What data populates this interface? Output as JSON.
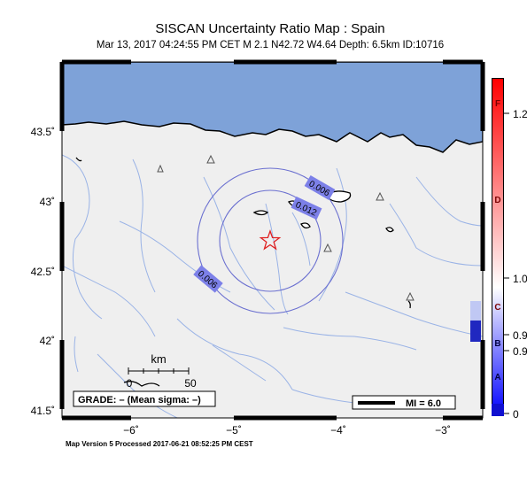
{
  "title": "SISCAN Uncertainty Ratio Map : Spain",
  "subtitle": "Mar 13, 2017 04:24:55 PM CET   M 2.1   N42.72 W4.64   Depth: 6.5km   ID:10716",
  "footer": "Map Version 5 Processed 2017-06-21 08:52:25 PM CEST",
  "map": {
    "lat_labels": [
      "43.5˚",
      "43˚",
      "42.5˚",
      "42˚",
      "41.5˚"
    ],
    "lon_labels": [
      "−6˚",
      "−5˚",
      "−4˚",
      "−3˚"
    ],
    "contour_labels": [
      "0.006",
      "0.012",
      "0.006"
    ],
    "scale_bar": {
      "unit": "km",
      "left_label": "0",
      "right_label": "50"
    },
    "grade_box": "GRADE: – (Mean sigma: –)",
    "legend_mi": "MI = 6.0",
    "epicenter_icon": "star-icon",
    "station_icon": "triangle-icon",
    "colors": {
      "sea": "#7ea2d8",
      "land": "#efefef",
      "contour": "#6b70d0",
      "river": "#9ab3e6",
      "star": "#e02020"
    }
  },
  "colorbar": {
    "left_letters": [
      "F",
      "D",
      "C",
      "B",
      "A"
    ],
    "right_ticks": [
      "1.2",
      "1.0",
      "0.9",
      "0.9",
      "0"
    ],
    "colors": {
      "top": "#ff0000",
      "middle": "#ffffff",
      "bottom": "#0000ff"
    }
  }
}
